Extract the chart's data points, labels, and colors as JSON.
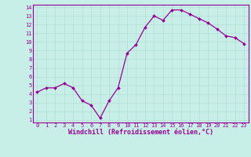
{
  "x": [
    0,
    1,
    2,
    3,
    4,
    5,
    6,
    7,
    8,
    9,
    10,
    11,
    12,
    13,
    14,
    15,
    16,
    17,
    18,
    19,
    20,
    21,
    22,
    23
  ],
  "y": [
    4.2,
    4.7,
    4.7,
    5.2,
    4.7,
    3.2,
    2.7,
    1.2,
    3.2,
    4.7,
    8.7,
    9.7,
    11.7,
    13.0,
    12.5,
    13.7,
    13.7,
    13.2,
    12.7,
    12.2,
    11.5,
    10.7,
    10.5,
    9.8
  ],
  "line_color": "#990099",
  "marker": "D",
  "marker_size": 2.0,
  "bg_color": "#c8eee8",
  "grid_color": "#aaddcc",
  "xlabel": "Windchill (Refroidissement éolien,°C)",
  "ylim_min": 1,
  "ylim_max": 14,
  "xlim_min": 0,
  "xlim_max": 23,
  "yticks": [
    1,
    2,
    3,
    4,
    5,
    6,
    7,
    8,
    9,
    10,
    11,
    12,
    13,
    14
  ],
  "xticks": [
    0,
    1,
    2,
    3,
    4,
    5,
    6,
    7,
    8,
    9,
    10,
    11,
    12,
    13,
    14,
    15,
    16,
    17,
    18,
    19,
    20,
    21,
    22,
    23
  ],
  "tick_fontsize": 5.0,
  "xlabel_fontsize": 6.0,
  "linewidth": 0.9
}
